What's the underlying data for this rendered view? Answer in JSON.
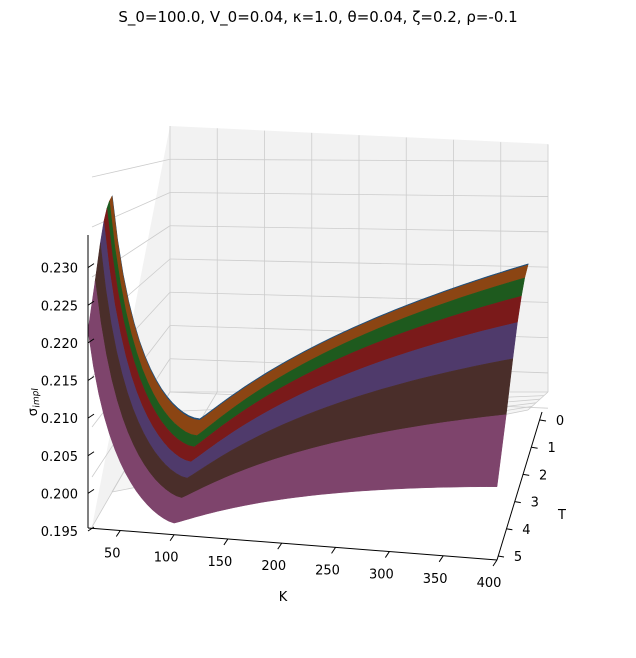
{
  "chart_data": {
    "type": "surface",
    "title": "S_0=100.0, V_0=0.04, κ=1.0, θ=0.04, ζ=0.2, ρ=-0.1",
    "xlabel": "K",
    "ylabel": "T",
    "zlabel": "σ_impl",
    "zlabel_display": "σimpl",
    "x_ticks": [
      "50",
      "100",
      "150",
      "200",
      "250",
      "300",
      "350",
      "400"
    ],
    "y_ticks": [
      "0",
      "1",
      "2",
      "3",
      "4",
      "5"
    ],
    "z_ticks": [
      "0.195",
      "0.200",
      "0.205",
      "0.210",
      "0.215",
      "0.220",
      "0.225",
      "0.230"
    ],
    "xlim": [
      20,
      400
    ],
    "ylim": [
      0.3,
      5
    ],
    "zlim": [
      0.195,
      0.231
    ],
    "grid": true,
    "bands": [
      {
        "T": 0.3,
        "color": "#1f4e79"
      },
      {
        "T": 0.8,
        "color": "#8b4513"
      },
      {
        "T": 1.3,
        "color": "#1e5a1e"
      },
      {
        "T": 1.9,
        "color": "#7a1a1a"
      },
      {
        "T": 2.6,
        "color": "#4f3a6b"
      },
      {
        "T": 3.6,
        "color": "#4a2e2a"
      },
      {
        "T": 5.0,
        "color": "#7e446c"
      }
    ],
    "smile_model": {
      "atm_vol_by_T": [
        [
          0.3,
          0.2018
        ],
        [
          0.8,
          0.2007
        ],
        [
          1.3,
          0.2001
        ],
        [
          1.9,
          0.1992
        ],
        [
          2.6,
          0.1983
        ],
        [
          3.6,
          0.1974
        ],
        [
          5.0,
          0.1965
        ]
      ],
      "description": "implied volatility smile: minimum near K=100, rising toward low and high strikes; smile flattens as T increases",
      "wing_left_by_T": [
        [
          0.3,
          0.2305
        ],
        [
          0.8,
          0.2305
        ],
        [
          1.3,
          0.2302
        ],
        [
          1.9,
          0.2293
        ],
        [
          2.6,
          0.2275
        ],
        [
          3.6,
          0.224
        ],
        [
          5.0,
          0.2195
        ]
      ],
      "wing_right_by_T": [
        [
          0.3,
          0.2163
        ],
        [
          0.8,
          0.2168
        ],
        [
          1.3,
          0.2165
        ],
        [
          1.9,
          0.2155
        ],
        [
          2.6,
          0.2135
        ],
        [
          3.6,
          0.21
        ],
        [
          5.0,
          0.206
        ]
      ]
    }
  }
}
